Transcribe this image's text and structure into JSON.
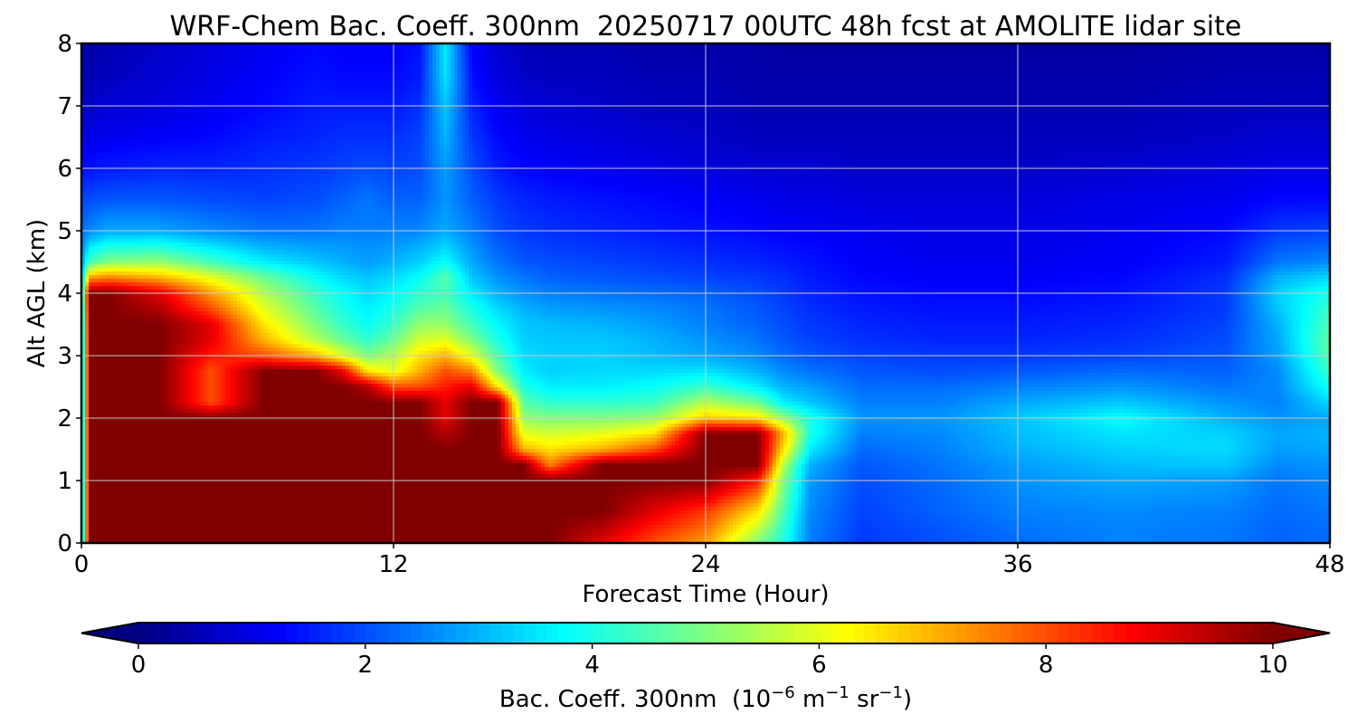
{
  "chart_data": {
    "type": "heatmap",
    "title": "WRF-Chem Bac. Coeff. 300nm  20250717 00UTC 48h fcst at AMOLITE lidar site",
    "xlabel": "Forecast Time (Hour)",
    "ylabel": "Alt AGL (km)",
    "xlim": [
      0,
      48
    ],
    "ylim": [
      0,
      8
    ],
    "x_ticks": [
      0,
      12,
      24,
      36,
      48
    ],
    "y_ticks": [
      0,
      1,
      2,
      3,
      4,
      5,
      6,
      7,
      8
    ],
    "grid": true,
    "colormap": "jet",
    "colorbar": {
      "label_main": "Bac. Coeff. 300nm  (10",
      "label_exp1": "−6",
      "label_mid": " m",
      "label_exp2": "−1",
      "label_mid2": " sr",
      "label_exp3": "−1",
      "label_end": ")",
      "range": [
        0,
        10
      ],
      "ticks": [
        0,
        2,
        4,
        6,
        8,
        10
      ],
      "extend": "both",
      "position": "bottom"
    },
    "x": [
      0,
      0.3,
      1,
      3,
      5,
      7,
      9,
      10,
      11,
      12,
      13,
      14,
      15,
      16,
      17,
      18,
      20,
      22,
      24,
      26,
      27,
      28,
      30,
      33,
      36,
      40,
      44,
      46,
      48
    ],
    "y": [
      0,
      0.5,
      1,
      1.25,
      1.5,
      1.75,
      2,
      2.25,
      2.5,
      2.75,
      3,
      3.25,
      3.5,
      3.75,
      4,
      4.25,
      4.5,
      5,
      5.5,
      6,
      6.5,
      7,
      7.5,
      8
    ],
    "z": [
      [
        2.5,
        10,
        10,
        10,
        10,
        10,
        10,
        10,
        10,
        10,
        10,
        10,
        10,
        10,
        10,
        10,
        9,
        8,
        7.2,
        5,
        4,
        2.5,
        1.8,
        2.0,
        2.3,
        2.5,
        2.4,
        2.2,
        2.3
      ],
      [
        2.5,
        10,
        10,
        10,
        10,
        10,
        10,
        10,
        10,
        10,
        10,
        10,
        10,
        10,
        10,
        10,
        10,
        9,
        8.2,
        6.5,
        4.5,
        2.6,
        1.9,
        2.2,
        2.5,
        2.6,
        2.5,
        2.3,
        2.4
      ],
      [
        2.5,
        10,
        10,
        10,
        10,
        10,
        10,
        10,
        10,
        10,
        10,
        10,
        10,
        10,
        10,
        10,
        10,
        10,
        10,
        8.5,
        5,
        2.8,
        2.0,
        2.3,
        2.7,
        2.9,
        2.8,
        2.4,
        2.6
      ],
      [
        2.5,
        10,
        10,
        10,
        10,
        10,
        10,
        10,
        10,
        10,
        10,
        10,
        10,
        10,
        10,
        7.5,
        10,
        10,
        10,
        10,
        5.5,
        3.0,
        2.1,
        2.4,
        2.8,
        3.1,
        3.2,
        2.6,
        2.7
      ],
      [
        2.5,
        10,
        10,
        10,
        10,
        10,
        10,
        10,
        10,
        10,
        10,
        10,
        10,
        10,
        7.0,
        6.5,
        7.0,
        8.0,
        10,
        10,
        6.5,
        3.6,
        2.3,
        2.5,
        3.0,
        3.3,
        3.4,
        2.8,
        2.9
      ],
      [
        2.5,
        10,
        10,
        10,
        10,
        10,
        10,
        10,
        10,
        10,
        10,
        9.5,
        10,
        10,
        6.0,
        5.8,
        6.0,
        6.5,
        10,
        10,
        7.0,
        4.0,
        2.5,
        2.6,
        3.1,
        3.5,
        3.3,
        2.9,
        3.0
      ],
      [
        2.5,
        10,
        10,
        10,
        10,
        10,
        10,
        10,
        10,
        10,
        10,
        9.0,
        10,
        10,
        5.2,
        5.0,
        5.0,
        5.2,
        6.8,
        6.5,
        5.2,
        4.0,
        2.7,
        2.7,
        3.2,
        3.8,
        3.0,
        2.7,
        2.9
      ],
      [
        2.5,
        10,
        10,
        10,
        8.0,
        10,
        10,
        10,
        10,
        10,
        10,
        9.0,
        10,
        10,
        4.6,
        4.2,
        4.2,
        4.3,
        5.5,
        4.8,
        3.6,
        3.2,
        2.5,
        2.5,
        2.9,
        3.2,
        2.7,
        2.5,
        3.4
      ],
      [
        2.5,
        10,
        10,
        10,
        8.0,
        10,
        10,
        10,
        9.5,
        8.0,
        8.0,
        8.5,
        9.0,
        6.5,
        4.0,
        3.6,
        3.6,
        3.8,
        4.3,
        3.6,
        3.0,
        2.8,
        2.3,
        2.3,
        2.5,
        2.7,
        2.4,
        2.6,
        3.9
      ],
      [
        2.5,
        10,
        10,
        10,
        8.0,
        10,
        10,
        9.0,
        6.5,
        6.0,
        7.0,
        8.0,
        7.5,
        5.0,
        3.6,
        3.3,
        3.4,
        3.4,
        3.5,
        3.0,
        2.6,
        2.4,
        2.1,
        2.0,
        2.1,
        2.3,
        2.2,
        2.6,
        4.3
      ],
      [
        2.5,
        10,
        10,
        10,
        8.5,
        8.0,
        7.0,
        6.0,
        5.0,
        5.5,
        6.5,
        7.0,
        6.0,
        4.5,
        3.4,
        3.3,
        3.3,
        3.1,
        2.9,
        2.6,
        2.3,
        2.1,
        1.9,
        1.8,
        1.8,
        1.9,
        2.1,
        2.8,
        4.6
      ],
      [
        2.5,
        10,
        10,
        10,
        9.0,
        7.0,
        5.5,
        4.8,
        4.2,
        4.8,
        5.8,
        6.0,
        5.0,
        4.0,
        3.3,
        3.2,
        3.2,
        3.0,
        2.7,
        2.4,
        2.1,
        1.9,
        1.7,
        1.6,
        1.6,
        1.7,
        2.0,
        2.9,
        4.7
      ],
      [
        2.6,
        10,
        10,
        10,
        9.0,
        6.5,
        5.0,
        4.3,
        3.8,
        4.3,
        5.2,
        5.2,
        4.4,
        3.7,
        3.2,
        3.1,
        3.0,
        2.8,
        2.5,
        2.2,
        2.0,
        1.8,
        1.6,
        1.5,
        1.5,
        1.6,
        1.9,
        3.0,
        4.5
      ],
      [
        2.8,
        10,
        10,
        9.5,
        8.0,
        6.0,
        4.6,
        4.0,
        3.6,
        4.0,
        4.6,
        4.8,
        4.0,
        3.4,
        3.0,
        2.8,
        2.7,
        2.6,
        2.4,
        2.1,
        1.9,
        1.7,
        1.5,
        1.4,
        1.4,
        1.5,
        1.8,
        3.2,
        4.3
      ],
      [
        3.2,
        10,
        10,
        9.0,
        7.2,
        5.5,
        4.3,
        3.8,
        3.4,
        3.7,
        4.2,
        4.4,
        3.6,
        3.0,
        2.7,
        2.5,
        2.4,
        2.3,
        2.2,
        2.0,
        1.8,
        1.6,
        1.4,
        1.3,
        1.3,
        1.4,
        1.8,
        3.3,
        4.0
      ],
      [
        3.2,
        7.2,
        7.5,
        7.0,
        6.0,
        4.8,
        3.8,
        3.4,
        3.2,
        3.4,
        3.8,
        4.6,
        3.2,
        2.7,
        2.4,
        2.2,
        2.1,
        2.0,
        1.9,
        1.8,
        1.7,
        1.5,
        1.3,
        1.2,
        1.2,
        1.3,
        1.7,
        3.0,
        3.4
      ],
      [
        2.8,
        4.4,
        5.0,
        5.2,
        4.4,
        3.6,
        3.2,
        3.0,
        2.8,
        3.0,
        3.3,
        3.8,
        2.9,
        2.4,
        2.1,
        2.0,
        1.9,
        1.8,
        1.7,
        1.6,
        1.5,
        1.4,
        1.2,
        1.1,
        1.1,
        1.2,
        1.5,
        2.4,
        2.6
      ],
      [
        2.3,
        2.6,
        2.9,
        2.9,
        2.6,
        2.4,
        2.4,
        2.5,
        2.5,
        2.5,
        2.6,
        2.9,
        2.5,
        2.0,
        1.8,
        1.7,
        1.6,
        1.5,
        1.4,
        1.3,
        1.2,
        1.2,
        1.1,
        1.0,
        1.0,
        1.1,
        1.3,
        1.8,
        1.9
      ],
      [
        1.9,
        2.0,
        2.1,
        2.1,
        2.0,
        1.9,
        2.0,
        2.2,
        2.4,
        2.2,
        2.2,
        2.7,
        2.2,
        1.8,
        1.6,
        1.5,
        1.4,
        1.3,
        1.2,
        1.1,
        1.0,
        1.0,
        0.9,
        0.9,
        0.9,
        1.0,
        1.1,
        1.3,
        1.3
      ],
      [
        1.4,
        1.4,
        1.5,
        1.6,
        1.6,
        1.7,
        1.8,
        1.9,
        2.0,
        1.9,
        2.0,
        2.8,
        2.0,
        1.5,
        1.3,
        1.2,
        1.1,
        1.0,
        0.9,
        0.8,
        0.8,
        0.8,
        0.7,
        0.7,
        0.7,
        0.8,
        0.9,
        1.0,
        1.0
      ],
      [
        1.0,
        1.0,
        1.1,
        1.2,
        1.3,
        1.5,
        1.6,
        1.7,
        1.7,
        1.7,
        1.9,
        3.0,
        1.8,
        1.3,
        1.1,
        1.0,
        0.9,
        0.8,
        0.7,
        0.6,
        0.6,
        0.6,
        0.6,
        0.6,
        0.6,
        0.6,
        0.7,
        0.8,
        0.8
      ],
      [
        0.7,
        0.7,
        0.8,
        0.9,
        1.1,
        1.3,
        1.5,
        1.5,
        1.5,
        1.5,
        1.7,
        3.2,
        1.6,
        1.1,
        0.9,
        0.8,
        0.7,
        0.6,
        0.6,
        0.5,
        0.5,
        0.5,
        0.5,
        0.5,
        0.5,
        0.5,
        0.6,
        0.6,
        0.6
      ],
      [
        0.5,
        0.5,
        0.6,
        0.8,
        1.0,
        1.2,
        1.4,
        1.3,
        1.3,
        1.3,
        1.5,
        3.5,
        1.4,
        0.9,
        0.7,
        0.6,
        0.6,
        0.5,
        0.5,
        0.4,
        0.4,
        0.4,
        0.4,
        0.4,
        0.4,
        0.4,
        0.5,
        0.5,
        0.5
      ],
      [
        0.4,
        0.4,
        0.5,
        0.7,
        0.9,
        1.1,
        1.3,
        1.2,
        1.2,
        1.2,
        1.4,
        3.6,
        1.2,
        0.8,
        0.6,
        0.5,
        0.5,
        0.4,
        0.4,
        0.4,
        0.3,
        0.3,
        0.3,
        0.3,
        0.3,
        0.3,
        0.4,
        0.4,
        0.4
      ]
    ]
  }
}
